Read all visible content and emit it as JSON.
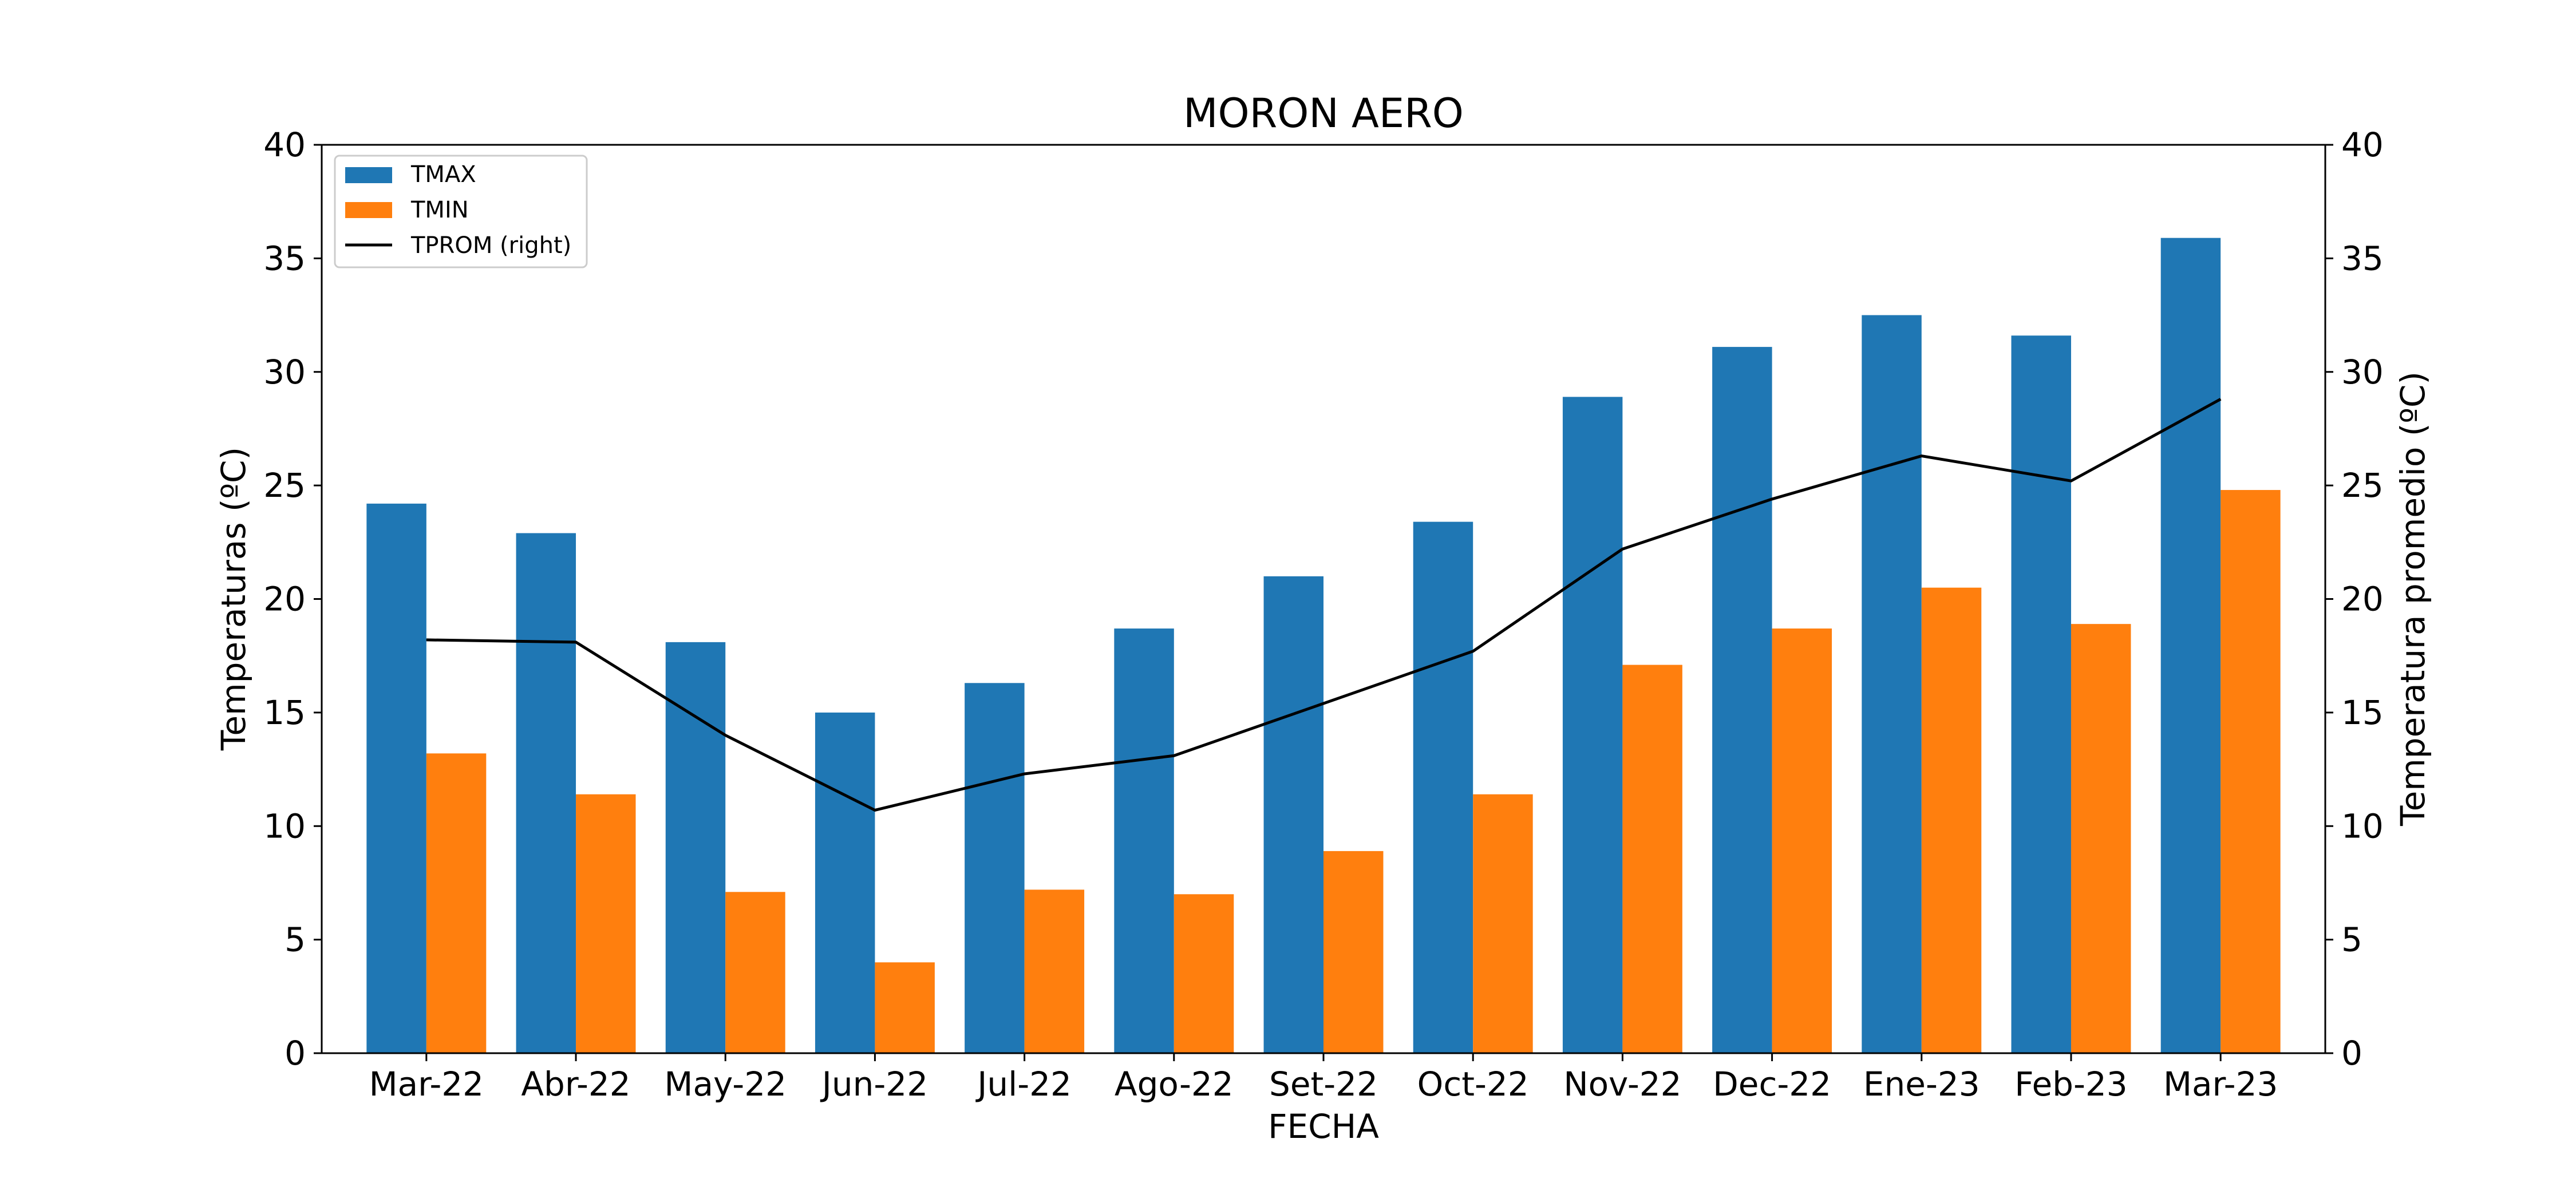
{
  "chart_data": {
    "type": "bar",
    "title": "MORON AERO",
    "xlabel": "FECHA",
    "ylabel": "Temperaturas (ºC)",
    "y2label": "Temperatura promedio (ºC)",
    "categories": [
      "Mar-22",
      "Abr-22",
      "May-22",
      "Jun-22",
      "Jul-22",
      "Ago-22",
      "Set-22",
      "Oct-22",
      "Nov-22",
      "Dec-22",
      "Ene-23",
      "Feb-23",
      "Mar-23"
    ],
    "series": [
      {
        "name": "TMAX",
        "type": "bar",
        "axis": "left",
        "color": "#1f77b4",
        "values": [
          24.2,
          22.9,
          18.1,
          15.0,
          16.3,
          18.7,
          21.0,
          23.4,
          28.9,
          31.1,
          32.5,
          31.6,
          35.9
        ]
      },
      {
        "name": "TMIN",
        "type": "bar",
        "axis": "left",
        "color": "#ff7f0e",
        "values": [
          13.2,
          11.4,
          7.1,
          4.0,
          7.2,
          7.0,
          8.9,
          11.4,
          17.1,
          18.7,
          20.5,
          18.9,
          24.8
        ]
      },
      {
        "name": "TPROM (right)",
        "type": "line",
        "axis": "right",
        "color": "#000000",
        "values": [
          18.2,
          18.1,
          14.0,
          10.7,
          12.3,
          13.1,
          15.4,
          17.7,
          22.2,
          24.4,
          26.3,
          25.2,
          28.8
        ]
      }
    ],
    "ylim": [
      0,
      40
    ],
    "y2lim": [
      0,
      40
    ],
    "yticks": [
      0,
      5,
      10,
      15,
      20,
      25,
      30,
      35,
      40
    ],
    "grid": false,
    "legend": "top-left"
  }
}
